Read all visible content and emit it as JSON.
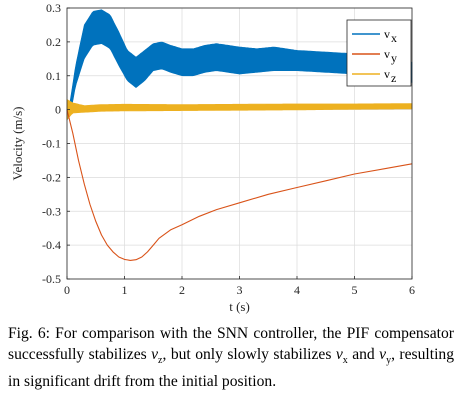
{
  "chart_data": {
    "type": "line",
    "title": "",
    "xlabel": "t (s)",
    "ylabel": "Velocity (m/s)",
    "xlim": [
      0,
      6
    ],
    "ylim": [
      -0.5,
      0.3
    ],
    "xticks": [
      0,
      1,
      2,
      3,
      4,
      5,
      6
    ],
    "xtick_labels": [
      "0",
      "1",
      "2",
      "3",
      "4",
      "5",
      "6"
    ],
    "yticks": [
      -0.5,
      -0.4,
      -0.3,
      -0.2,
      -0.1,
      0,
      0.1,
      0.2,
      0.3
    ],
    "ytick_labels": [
      "-0.5",
      "-0.4",
      "-0.3",
      "-0.2",
      "-0.1",
      "0",
      "0.1",
      "0.2",
      "0.3"
    ],
    "grid": true,
    "legend_position": "top-right",
    "series": [
      {
        "name": "v",
        "subscript": "x",
        "color": "#0072BD",
        "style": "oscillating band",
        "x": [
          0,
          0.05,
          0.15,
          0.3,
          0.45,
          0.6,
          0.75,
          0.9,
          1.05,
          1.2,
          1.35,
          1.5,
          1.65,
          1.8,
          2.0,
          2.2,
          2.4,
          2.6,
          2.8,
          3.0,
          3.3,
          3.6,
          4.0,
          4.5,
          5.0,
          5.5,
          6.0
        ],
        "values": [
          -0.02,
          0.0,
          0.1,
          0.2,
          0.24,
          0.245,
          0.23,
          0.18,
          0.13,
          0.11,
          0.13,
          0.155,
          0.16,
          0.15,
          0.14,
          0.14,
          0.15,
          0.155,
          0.15,
          0.145,
          0.145,
          0.15,
          0.145,
          0.14,
          0.135,
          0.125,
          0.11
        ],
        "amplitude": [
          0.01,
          0.02,
          0.03,
          0.05,
          0.05,
          0.05,
          0.05,
          0.05,
          0.045,
          0.045,
          0.045,
          0.04,
          0.04,
          0.04,
          0.04,
          0.04,
          0.04,
          0.04,
          0.04,
          0.04,
          0.035,
          0.035,
          0.03,
          0.03,
          0.03,
          0.03,
          0.03
        ]
      },
      {
        "name": "v",
        "subscript": "y",
        "color": "#D95319",
        "style": "line",
        "x": [
          0,
          0.1,
          0.2,
          0.3,
          0.4,
          0.5,
          0.6,
          0.7,
          0.8,
          0.9,
          1.0,
          1.1,
          1.2,
          1.3,
          1.4,
          1.5,
          1.6,
          1.8,
          2.0,
          2.3,
          2.6,
          3.0,
          3.5,
          4.0,
          4.5,
          5.0,
          5.5,
          6.0
        ],
        "values": [
          0.0,
          -0.07,
          -0.15,
          -0.22,
          -0.28,
          -0.33,
          -0.37,
          -0.4,
          -0.42,
          -0.435,
          -0.442,
          -0.445,
          -0.443,
          -0.435,
          -0.42,
          -0.4,
          -0.38,
          -0.355,
          -0.34,
          -0.315,
          -0.295,
          -0.275,
          -0.25,
          -0.23,
          -0.21,
          -0.19,
          -0.175,
          -0.16
        ]
      },
      {
        "name": "v",
        "subscript": "z",
        "color": "#EDB120",
        "style": "oscillating band",
        "x": [
          0,
          0.1,
          0.3,
          0.6,
          1.0,
          2.0,
          3.0,
          4.0,
          5.0,
          6.0
        ],
        "values": [
          0.0,
          0.005,
          0.002,
          0.005,
          0.006,
          0.006,
          0.007,
          0.008,
          0.009,
          0.01
        ],
        "amplitude": [
          0.03,
          0.015,
          0.01,
          0.01,
          0.01,
          0.009,
          0.009,
          0.009,
          0.008,
          0.008
        ]
      }
    ]
  },
  "caption": {
    "prefix": "Fig. 6: For comparison with the SNN controller, the PIF compensator successfully stabilizes ",
    "var_z": "v",
    "var_z_sub": "z",
    "middle": ", but only slowly stabilizes ",
    "var_x": "v",
    "var_x_sub": "x",
    "and": " and ",
    "var_y": "v",
    "var_y_sub": "y",
    "suffix": ", resulting in significant drift from the initial position."
  }
}
